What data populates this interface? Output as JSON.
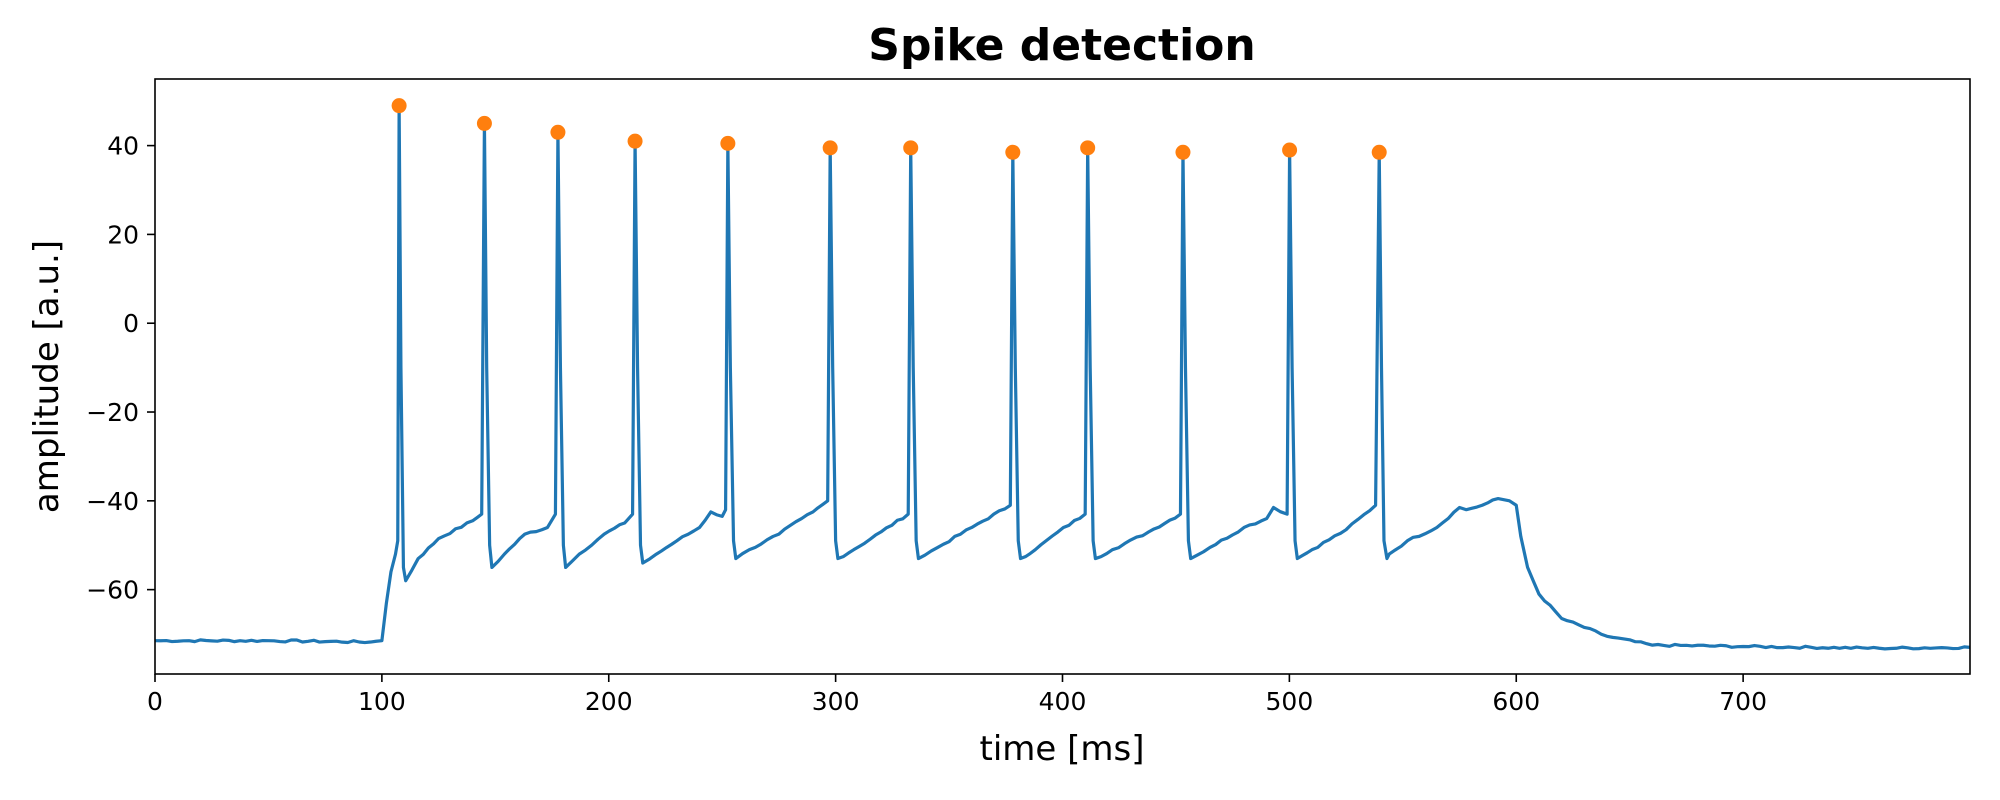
{
  "chart_data": {
    "type": "line",
    "title": "Spike detection",
    "xlabel": "time [ms]",
    "ylabel": "amplitude [a.u.]",
    "xlim": [
      0,
      800
    ],
    "ylim": [
      -79,
      55
    ],
    "xticks": [
      0,
      100,
      200,
      300,
      400,
      500,
      600,
      700
    ],
    "yticks": [
      -60,
      -40,
      -20,
      0,
      20,
      40
    ],
    "grid": false,
    "legend": "none",
    "colors": {
      "trace": "#1f77b4",
      "peaks": "#ff7f0e"
    },
    "series": [
      {
        "type": "line",
        "x": [
          0,
          50,
          95,
          100,
          102,
          104,
          106,
          107,
          107.6,
          108.4,
          109.5,
          110.5,
          116,
          125,
          140,
          144,
          145.2,
          146.2,
          147.5,
          148.5,
          154,
          163,
          173,
          176.5,
          177.6,
          178.7,
          180,
          181,
          187,
          198,
          207,
          210.5,
          211.6,
          212.7,
          214,
          215,
          221,
          230,
          240,
          245,
          250,
          251.5,
          252.5,
          253.6,
          255,
          256,
          262,
          275,
          285,
          290,
          296.5,
          297.6,
          298.7,
          300,
          301,
          308,
          320,
          332,
          333.1,
          334.2,
          335.5,
          336.5,
          345,
          360,
          377,
          378.1,
          379.2,
          380.5,
          381.5,
          388,
          398,
          410,
          411.1,
          412.2,
          413.5,
          414.5,
          422,
          438,
          452,
          453.1,
          454.2,
          455.5,
          456.5,
          465,
          480,
          490,
          493,
          499,
          500.1,
          501.2,
          502.5,
          503.5,
          510,
          525,
          538,
          539.6,
          540.6,
          541.7,
          543,
          544,
          552,
          565,
          575,
          578,
          585,
          592,
          597,
          600,
          602,
          605,
          610,
          620,
          640,
          660,
          700,
          760,
          800
        ],
        "y": [
          -71.5,
          -71.5,
          -71.8,
          -71.5,
          -63,
          -56,
          -52,
          -49,
          49,
          -10,
          -55,
          -58,
          -53,
          -48.5,
          -44.5,
          -43,
          45,
          -10,
          -50,
          -55,
          -52,
          -47.5,
          -46,
          -43,
          43,
          -10,
          -50,
          -55,
          -52,
          -47.5,
          -45,
          -43,
          41,
          -10,
          -50,
          -54,
          -52,
          -49,
          -46,
          -42.5,
          -43.5,
          -42,
          40.5,
          -10,
          -49,
          -53,
          -51,
          -47.5,
          -44,
          -42.5,
          -40,
          39.5,
          -10,
          -49,
          -53,
          -51,
          -47,
          -43,
          39.5,
          -10,
          -49,
          -53,
          -50.5,
          -46,
          -41,
          38.5,
          -10,
          -49,
          -53,
          -51,
          -47,
          -43,
          39.5,
          -10,
          -49,
          -53,
          -51,
          -47,
          -43,
          38.5,
          -10,
          -49,
          -53,
          -50.5,
          -46,
          -44,
          -41.5,
          -43,
          39,
          -10,
          -49,
          -53,
          -51,
          -46.5,
          -41,
          38.5,
          -10,
          -49,
          -53,
          -52,
          -49,
          -46,
          -41.5,
          -42,
          -41,
          -39.5,
          -40,
          -41,
          -48,
          -55,
          -61,
          -66.5,
          -70.5,
          -72.5,
          -72.8,
          -73.2,
          -73
        ]
      },
      {
        "type": "scatter",
        "x": [
          107.6,
          145.2,
          177.6,
          211.6,
          252.5,
          297.6,
          333.1,
          378.1,
          411.1,
          453.1,
          500.1,
          539.6
        ],
        "y": [
          49,
          45,
          43,
          41,
          40.5,
          39.5,
          39.5,
          38.5,
          39.5,
          38.5,
          39,
          38.5
        ]
      }
    ]
  }
}
